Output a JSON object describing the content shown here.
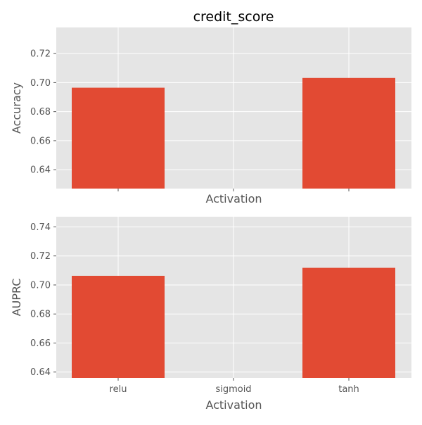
{
  "chart_data": {
    "type": "bar",
    "title": "credit_score",
    "categories": [
      "relu",
      "sigmoid",
      "tanh"
    ],
    "colors": {
      "bar": "#e24a33",
      "panel": "#e5e5e5",
      "grid": "#ffffff",
      "text": "#555555"
    },
    "panels": [
      {
        "ylabel": "Accuracy",
        "xlabel": "Activation",
        "values": [
          0.6965,
          null,
          0.7032
        ],
        "ylim": [
          0.627,
          0.738
        ],
        "yticks": [
          0.64,
          0.66,
          0.68,
          0.7,
          0.72
        ],
        "ytick_labels": [
          "0.64",
          "0.66",
          "0.68",
          "0.70",
          "0.72"
        ],
        "show_xtick_labels": false
      },
      {
        "ylabel": "AUPRC",
        "xlabel": "Activation",
        "values": [
          0.7063,
          null,
          0.7118
        ],
        "ylim": [
          0.636,
          0.747
        ],
        "yticks": [
          0.64,
          0.66,
          0.68,
          0.7,
          0.72,
          0.74
        ],
        "ytick_labels": [
          "0.64",
          "0.66",
          "0.68",
          "0.70",
          "0.72",
          "0.74"
        ],
        "show_xtick_labels": true
      }
    ]
  }
}
